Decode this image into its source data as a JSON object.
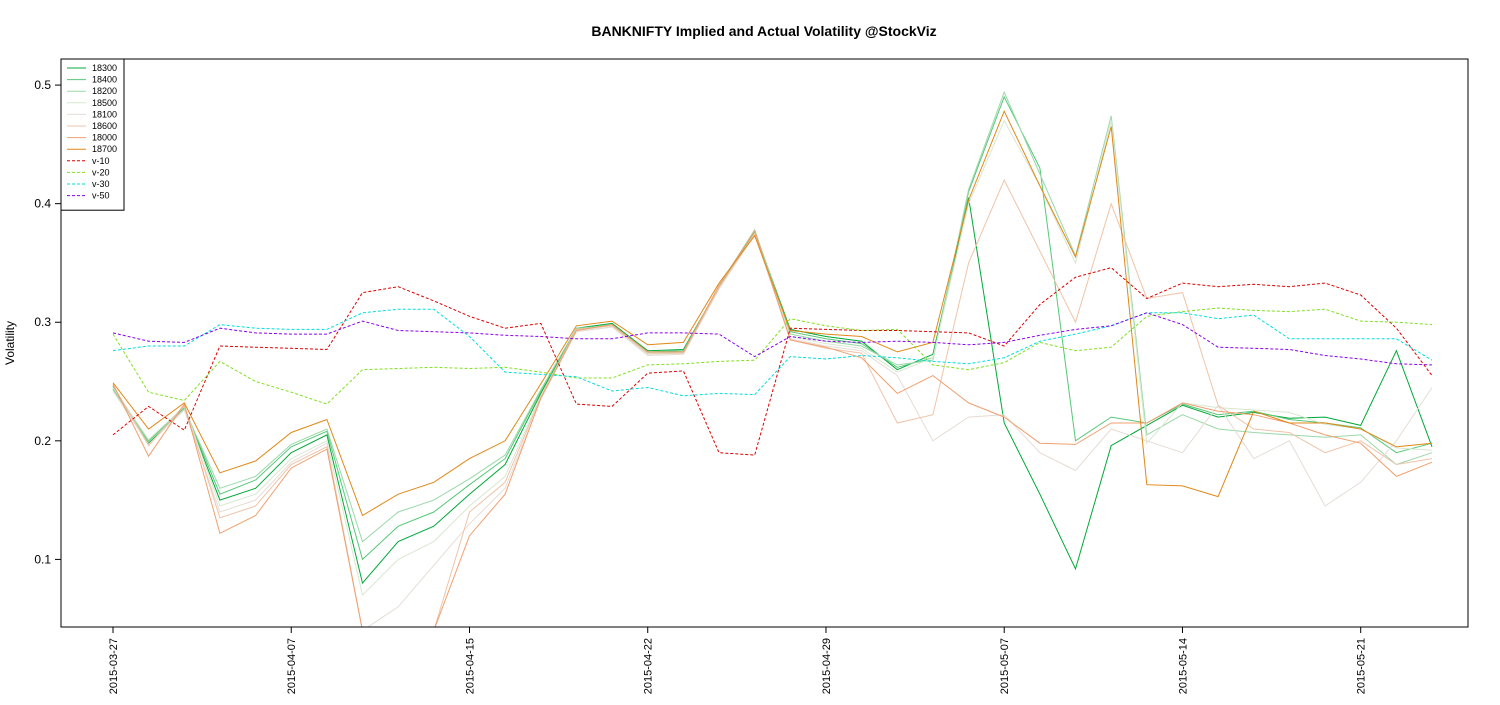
{
  "chart_data": {
    "type": "line",
    "title": "BANKNIFTY Implied and Actual Volatility @StockViz",
    "xlabel": "",
    "ylabel": "Volatility",
    "ylim": [
      0.043,
      0.522
    ],
    "grid": false,
    "legend_position": "top-left",
    "x": [
      "2015-03-27",
      "2015-03-30",
      "2015-03-31",
      "2015-04-01",
      "2015-04-06",
      "2015-04-07",
      "2015-04-08",
      "2015-04-09",
      "2015-04-10",
      "2015-04-13",
      "2015-04-15",
      "2015-04-16",
      "2015-04-17",
      "2015-04-20",
      "2015-04-21",
      "2015-04-22",
      "2015-04-23",
      "2015-04-24",
      "2015-04-27",
      "2015-04-28",
      "2015-04-29",
      "2015-04-30",
      "2015-05-04",
      "2015-05-05",
      "2015-05-06",
      "2015-05-07",
      "2015-05-08",
      "2015-05-11",
      "2015-05-12",
      "2015-05-13",
      "2015-05-14",
      "2015-05-15",
      "2015-05-18",
      "2015-05-19",
      "2015-05-20",
      "2015-05-21",
      "2015-05-22",
      "2015-05-25"
    ],
    "x_ticks": [
      "2015-03-27",
      "2015-04-07",
      "2015-04-15",
      "2015-04-22",
      "2015-04-29",
      "2015-05-07",
      "2015-05-14",
      "2015-05-21"
    ],
    "y_ticks": [
      "0.1",
      "0.2",
      "0.3",
      "0.4",
      "0.5"
    ],
    "series": [
      {
        "name": "18300",
        "color": "#00a838",
        "dash": "",
        "values": [
          0.246,
          0.198,
          0.228,
          0.15,
          0.16,
          0.19,
          0.205,
          0.08,
          0.115,
          0.128,
          0.155,
          0.18,
          0.24,
          0.295,
          0.299,
          0.276,
          0.277,
          0.33,
          0.376,
          0.294,
          0.288,
          0.284,
          0.26,
          0.273,
          0.405,
          0.215,
          0.155,
          0.092,
          0.196,
          0.213,
          0.23,
          0.22,
          0.224,
          0.219,
          0.22,
          0.213,
          0.276,
          0.195
        ]
      },
      {
        "name": "18400",
        "color": "#56c878",
        "dash": "",
        "values": [
          0.244,
          0.2,
          0.228,
          0.155,
          0.167,
          0.195,
          0.208,
          0.1,
          0.128,
          0.14,
          0.163,
          0.185,
          0.242,
          0.294,
          0.298,
          0.275,
          0.276,
          0.33,
          0.377,
          0.292,
          0.286,
          0.282,
          0.262,
          0.27,
          0.41,
          0.49,
          0.43,
          0.2,
          0.22,
          0.215,
          0.231,
          0.222,
          0.225,
          0.218,
          0.215,
          0.211,
          0.19,
          0.198
        ]
      },
      {
        "name": "18200",
        "color": "#9ad8a8",
        "dash": "",
        "values": [
          0.243,
          0.199,
          0.227,
          0.16,
          0.17,
          0.197,
          0.21,
          0.115,
          0.14,
          0.15,
          0.168,
          0.188,
          0.243,
          0.295,
          0.297,
          0.274,
          0.275,
          0.331,
          0.378,
          0.29,
          0.284,
          0.28,
          0.264,
          0.268,
          0.412,
          0.494,
          0.425,
          0.356,
          0.474,
          0.205,
          0.222,
          0.21,
          0.207,
          0.205,
          0.203,
          0.205,
          0.18,
          0.19
        ]
      },
      {
        "name": "18500",
        "color": "#d8e8d0",
        "dash": "",
        "values": [
          0.245,
          0.201,
          0.229,
          0.145,
          0.155,
          0.185,
          0.2,
          0.07,
          0.1,
          0.115,
          0.145,
          0.17,
          0.238,
          0.293,
          0.296,
          0.273,
          0.274,
          0.329,
          0.375,
          0.288,
          0.282,
          0.278,
          0.258,
          0.27,
          0.4,
          0.47,
          0.415,
          0.35,
          0.47,
          0.198,
          0.232,
          0.228,
          0.226,
          0.224,
          0.214,
          0.21,
          0.194,
          0.192
        ]
      },
      {
        "name": "18100",
        "color": "#e6dcd6",
        "dash": "",
        "values": [
          0.242,
          0.197,
          0.226,
          0.14,
          0.15,
          0.182,
          0.198,
          0.04,
          0.06,
          0.095,
          0.13,
          0.16,
          0.235,
          0.292,
          0.296,
          0.272,
          0.273,
          0.328,
          0.374,
          0.286,
          0.28,
          0.276,
          0.255,
          0.2,
          0.22,
          0.222,
          0.19,
          0.175,
          0.21,
          0.2,
          0.19,
          0.23,
          0.185,
          0.2,
          0.145,
          0.165,
          0.2,
          0.245
        ]
      },
      {
        "name": "18600",
        "color": "#eec4a8",
        "dash": "",
        "values": [
          0.247,
          0.196,
          0.23,
          0.135,
          0.145,
          0.18,
          0.195,
          0.04,
          0.04,
          0.04,
          0.14,
          0.165,
          0.237,
          0.294,
          0.297,
          0.274,
          0.274,
          0.329,
          0.375,
          0.285,
          0.278,
          0.274,
          0.215,
          0.222,
          0.35,
          0.42,
          0.36,
          0.3,
          0.4,
          0.32,
          0.325,
          0.23,
          0.21,
          0.207,
          0.19,
          0.2,
          0.18,
          0.185
        ]
      },
      {
        "name": "18000",
        "color": "#f0a070",
        "dash": "",
        "values": [
          0.248,
          0.187,
          0.231,
          0.122,
          0.137,
          0.177,
          0.193,
          0.04,
          0.04,
          0.04,
          0.12,
          0.155,
          0.236,
          0.293,
          0.298,
          0.275,
          0.275,
          0.331,
          0.377,
          0.285,
          0.279,
          0.27,
          0.24,
          0.255,
          0.232,
          0.22,
          0.198,
          0.197,
          0.215,
          0.215,
          0.232,
          0.225,
          0.222,
          0.215,
          0.205,
          0.198,
          0.17,
          0.182
        ]
      },
      {
        "name": "18700",
        "color": "#e08818",
        "dash": "",
        "values": [
          0.249,
          0.21,
          0.232,
          0.173,
          0.183,
          0.207,
          0.218,
          0.137,
          0.155,
          0.165,
          0.185,
          0.2,
          0.248,
          0.297,
          0.301,
          0.281,
          0.283,
          0.333,
          0.373,
          0.293,
          0.29,
          0.288,
          0.275,
          0.283,
          0.403,
          0.478,
          0.415,
          0.355,
          0.465,
          0.163,
          0.162,
          0.153,
          0.225,
          0.215,
          0.215,
          0.21,
          0.195,
          0.198
        ]
      },
      {
        "name": "v-10",
        "color": "#dd0000",
        "dash": "3,2",
        "values": [
          0.205,
          0.229,
          0.209,
          0.28,
          0.279,
          0.278,
          0.277,
          0.325,
          0.33,
          0.318,
          0.305,
          0.295,
          0.299,
          0.231,
          0.229,
          0.257,
          0.259,
          0.19,
          0.188,
          0.295,
          0.294,
          0.293,
          0.293,
          0.292,
          0.291,
          0.28,
          0.315,
          0.338,
          0.346,
          0.32,
          0.333,
          0.33,
          0.332,
          0.33,
          0.333,
          0.323,
          0.295,
          0.255
        ]
      },
      {
        "name": "v-20",
        "color": "#80e020",
        "dash": "3,2",
        "values": [
          0.29,
          0.241,
          0.234,
          0.267,
          0.25,
          0.241,
          0.231,
          0.26,
          0.261,
          0.262,
          0.261,
          0.262,
          0.258,
          0.253,
          0.253,
          0.264,
          0.265,
          0.267,
          0.268,
          0.303,
          0.297,
          0.293,
          0.294,
          0.264,
          0.26,
          0.266,
          0.283,
          0.276,
          0.279,
          0.305,
          0.309,
          0.312,
          0.31,
          0.309,
          0.311,
          0.301,
          0.3,
          0.298
        ]
      },
      {
        "name": "v-30",
        "color": "#00dddd",
        "dash": "3,2",
        "values": [
          0.276,
          0.28,
          0.28,
          0.298,
          0.295,
          0.294,
          0.294,
          0.308,
          0.311,
          0.311,
          0.288,
          0.258,
          0.256,
          0.254,
          0.242,
          0.245,
          0.238,
          0.24,
          0.239,
          0.271,
          0.269,
          0.272,
          0.27,
          0.267,
          0.265,
          0.27,
          0.284,
          0.29,
          0.297,
          0.308,
          0.308,
          0.303,
          0.306,
          0.286,
          0.286,
          0.286,
          0.286,
          0.268
        ]
      },
      {
        "name": "v-50",
        "color": "#8800ee",
        "dash": "3,2",
        "values": [
          0.291,
          0.284,
          0.283,
          0.295,
          0.291,
          0.29,
          0.29,
          0.301,
          0.293,
          0.292,
          0.291,
          0.289,
          0.288,
          0.286,
          0.286,
          0.291,
          0.291,
          0.29,
          0.271,
          0.288,
          0.284,
          0.283,
          0.284,
          0.283,
          0.281,
          0.283,
          0.289,
          0.294,
          0.297,
          0.308,
          0.298,
          0.279,
          0.278,
          0.277,
          0.272,
          0.269,
          0.265,
          0.264
        ]
      }
    ]
  }
}
